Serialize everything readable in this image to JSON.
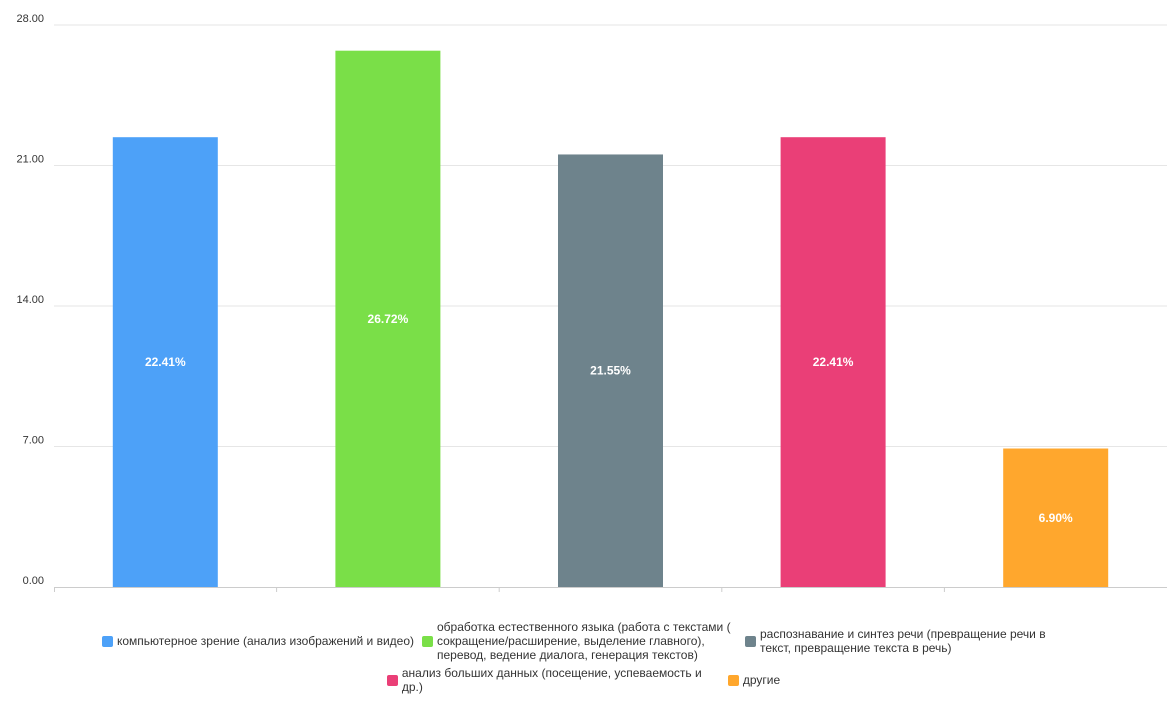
{
  "chart_data": {
    "type": "bar",
    "categories": [
      "компьютерное зрение (анализ изображений и видео)",
      "обработка естественного языка (работа с текстами (сокращение/расширение, выделение главного), перевод, ведение диалога, генерация текстов)",
      "распознавание и синтез речи (превращение речи в текст, превращение текста в речь)",
      "анализ больших данных (посещение, успеваемость и др.)",
      "другие"
    ],
    "values": [
      22.41,
      26.72,
      21.55,
      22.41,
      6.9
    ],
    "data_labels": [
      "22.41%",
      "26.72%",
      "21.55%",
      "22.41%",
      "6.90%"
    ],
    "colors": [
      "#4da1f8",
      "#7adf48",
      "#6e838c",
      "#ea3f77",
      "#ffa72d"
    ],
    "ylim": [
      0,
      28
    ],
    "yticks": [
      "0.00",
      "7.00",
      "14.00",
      "21.00",
      "28.00"
    ],
    "grid": true,
    "legend_position": "bottom"
  },
  "legend": {
    "items": [
      {
        "label": "компьютерное зрение (анализ изображений и видео)",
        "color": "#4da1f8"
      },
      {
        "label": "обработка естественного языка (работа с текстами ( сокращение/расширение, выделение главного), перевод, ведение диалога, генерация текстов)",
        "color": "#7adf48"
      },
      {
        "label": "распознавание и синтез речи (превращение речи в текст, превращение текста в речь)",
        "color": "#6e838c"
      },
      {
        "label": "анализ больших данных (посещение, успеваемость и др.)",
        "color": "#ea3f77"
      },
      {
        "label": "другие",
        "color": "#ffa72d"
      }
    ]
  }
}
